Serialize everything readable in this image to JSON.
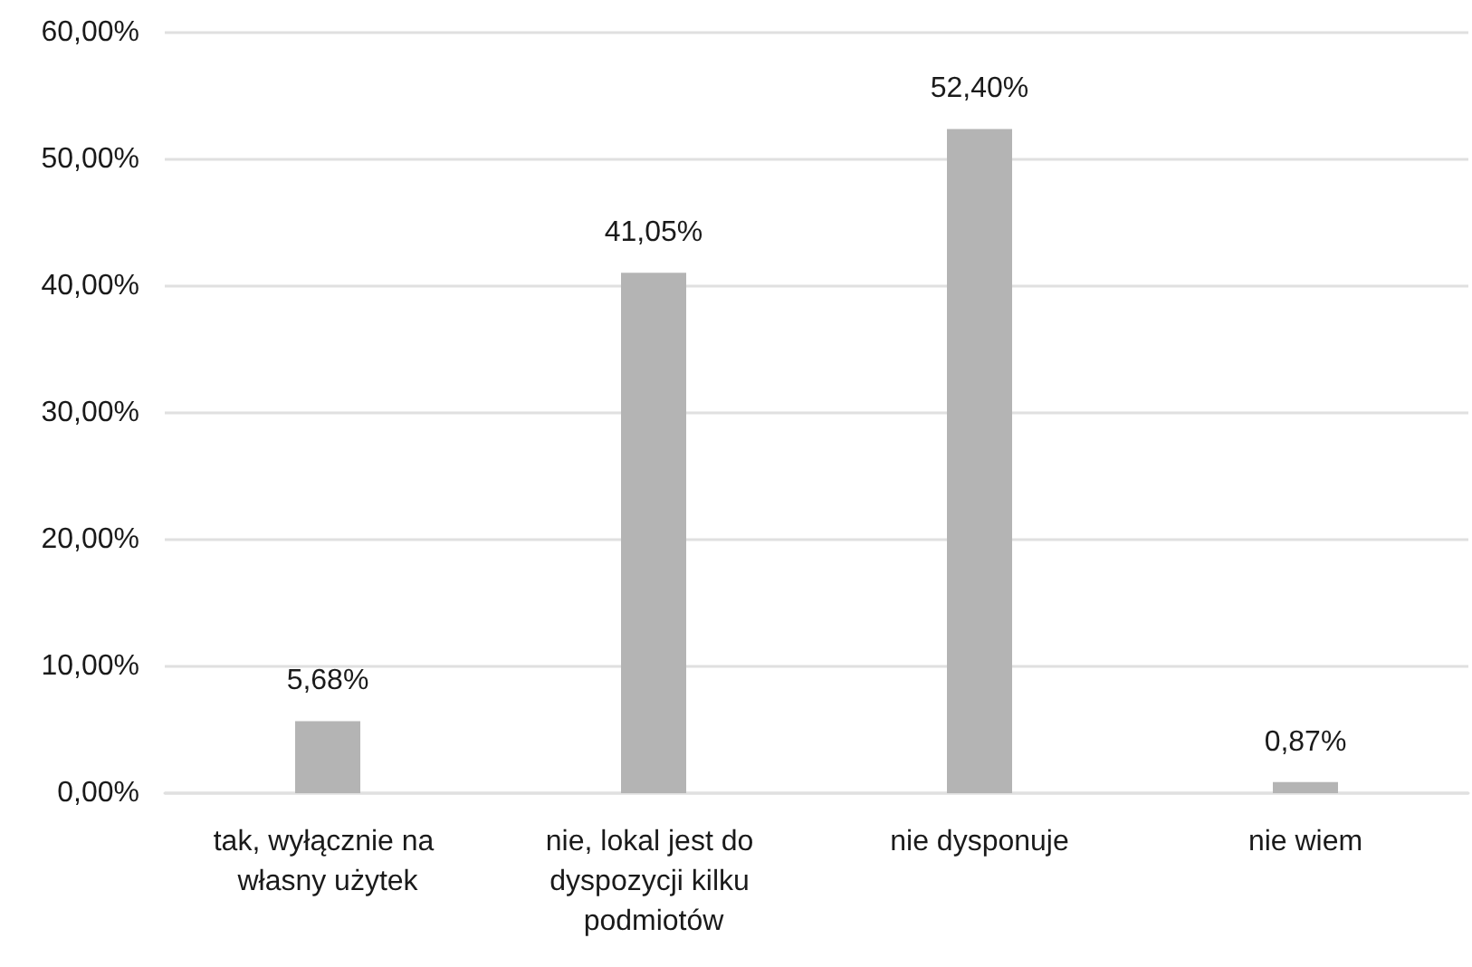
{
  "chart_data": {
    "type": "bar",
    "categories": [
      "tak, wyłącznie na własny użytek",
      "nie, lokal jest do dyspozycji kilku podmiotów",
      "nie dysponuje",
      "nie wiem"
    ],
    "values": [
      5.68,
      41.05,
      52.4,
      0.87
    ],
    "value_labels": [
      "5,68%",
      "41,05%",
      "52,40%",
      "0,87%"
    ],
    "color": "#b4b4b4",
    "ylim": [
      0,
      60
    ],
    "yticks": [
      {
        "value": 0,
        "label": "0,00%"
      },
      {
        "value": 10,
        "label": "10,00%"
      },
      {
        "value": 20,
        "label": "20,00%"
      },
      {
        "value": 30,
        "label": "30,00%"
      },
      {
        "value": 40,
        "label": "40,00%"
      },
      {
        "value": 50,
        "label": "50,00%"
      },
      {
        "value": 60,
        "label": "60,00%"
      }
    ],
    "grid": "y"
  }
}
